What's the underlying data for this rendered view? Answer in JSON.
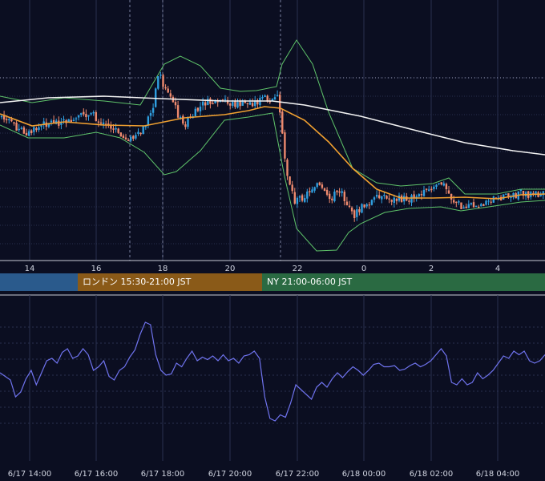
{
  "colors": {
    "background": "#0b0e21",
    "grid": "#2a3050",
    "candle_up": "#2f9fe0",
    "candle_down": "#ee8a6e",
    "ma_short": "#f0a030",
    "ma_long": "#f2f2f2",
    "bollinger": "#5fc46a",
    "rsi_line": "#6f73ee",
    "axis_text": "#d0d4e0"
  },
  "sessions": [
    {
      "label": "",
      "color": "#2a5a8c"
    },
    {
      "label": "ロンドン 15:30-21:00 JST",
      "color": "#8a5a18"
    },
    {
      "label": "NY 21:00-06:00 JST",
      "color": "#2a6a42"
    }
  ],
  "chart_data": [
    {
      "type": "candlestick",
      "x_tick_labels": [
        "14",
        "16",
        "18",
        "20",
        "22",
        "0",
        "2",
        "4"
      ],
      "series": [
        {
          "name": "",
          "kind": "ma_short"
        },
        {
          "name": "",
          "kind": "ma_long"
        },
        {
          "name": "",
          "kind": "bollinger_upper"
        },
        {
          "name": "",
          "kind": "bollinger_lower"
        }
      ]
    },
    {
      "type": "line",
      "x_tick_labels": [
        "6/17 14:00",
        "6/17 16:00",
        "6/17 18:00",
        "6/17 20:00",
        "6/17 22:00",
        "6/18 00:00",
        "6/18 02:00",
        "6/18 04:00"
      ],
      "values": [
        0.5,
        0.47,
        0.44,
        0.3,
        0.34,
        0.45,
        0.52,
        0.4,
        0.5,
        0.6,
        0.62,
        0.58,
        0.67,
        0.7,
        0.62,
        0.64,
        0.7,
        0.65,
        0.52,
        0.55,
        0.6,
        0.47,
        0.44,
        0.52,
        0.55,
        0.63,
        0.69,
        0.82,
        0.92,
        0.9,
        0.65,
        0.52,
        0.48,
        0.49,
        0.58,
        0.55,
        0.62,
        0.68,
        0.6,
        0.63,
        0.61,
        0.64,
        0.6,
        0.65,
        0.6,
        0.62,
        0.58,
        0.64,
        0.65,
        0.68,
        0.62,
        0.3,
        0.12,
        0.1,
        0.15,
        0.13,
        0.25,
        0.4,
        0.36,
        0.32,
        0.28,
        0.38,
        0.42,
        0.38,
        0.45,
        0.5,
        0.46,
        0.51,
        0.55,
        0.52,
        0.48,
        0.52,
        0.57,
        0.58,
        0.55,
        0.55,
        0.56,
        0.52,
        0.53,
        0.56,
        0.58,
        0.55,
        0.57,
        0.6,
        0.65,
        0.7,
        0.64,
        0.42,
        0.4,
        0.45,
        0.4,
        0.42,
        0.5,
        0.45,
        0.48,
        0.52,
        0.58,
        0.64,
        0.62,
        0.68,
        0.65,
        0.68,
        0.6,
        0.58,
        0.6,
        0.65
      ]
    }
  ]
}
